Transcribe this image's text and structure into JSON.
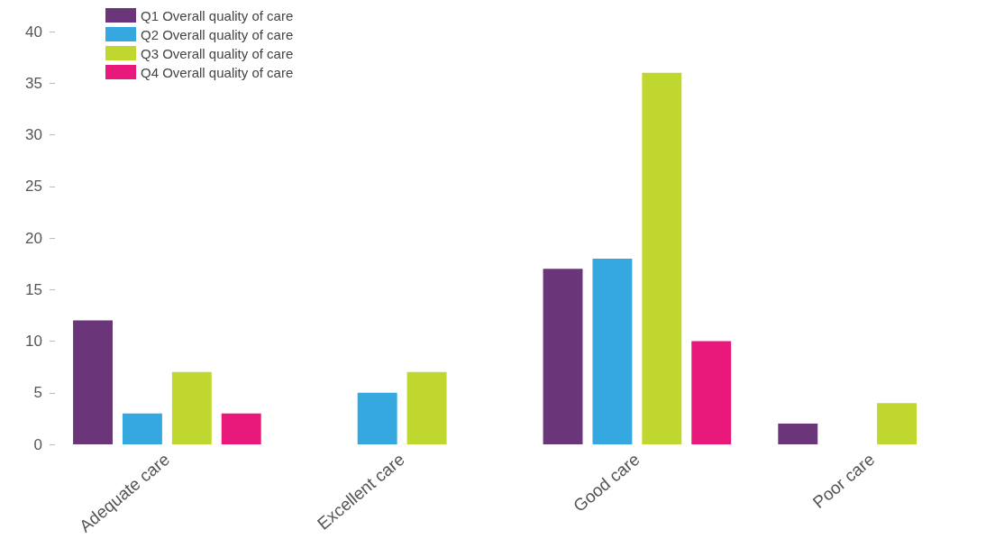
{
  "chart_data": {
    "type": "bar",
    "categories": [
      "Adequate care",
      "Excellent care",
      "Good care",
      "Poor care"
    ],
    "series": [
      {
        "name": "Q1 Overall quality of care",
        "color": "#6a3679",
        "values": [
          12,
          0,
          17,
          2
        ]
      },
      {
        "name": "Q2 Overall quality of care",
        "color": "#35a8df",
        "values": [
          3,
          5,
          18,
          0
        ]
      },
      {
        "name": "Q3 Overall quality of care",
        "color": "#c0d72f",
        "values": [
          7,
          7,
          36,
          4
        ]
      },
      {
        "name": "Q4 Overall quality of care",
        "color": "#e8197a",
        "values": [
          3,
          0,
          10,
          0
        ]
      }
    ],
    "ylim": [
      0,
      40
    ],
    "yticks": [
      0,
      5,
      10,
      15,
      20,
      25,
      30,
      35,
      40
    ],
    "grid": false,
    "legend": "top left"
  }
}
